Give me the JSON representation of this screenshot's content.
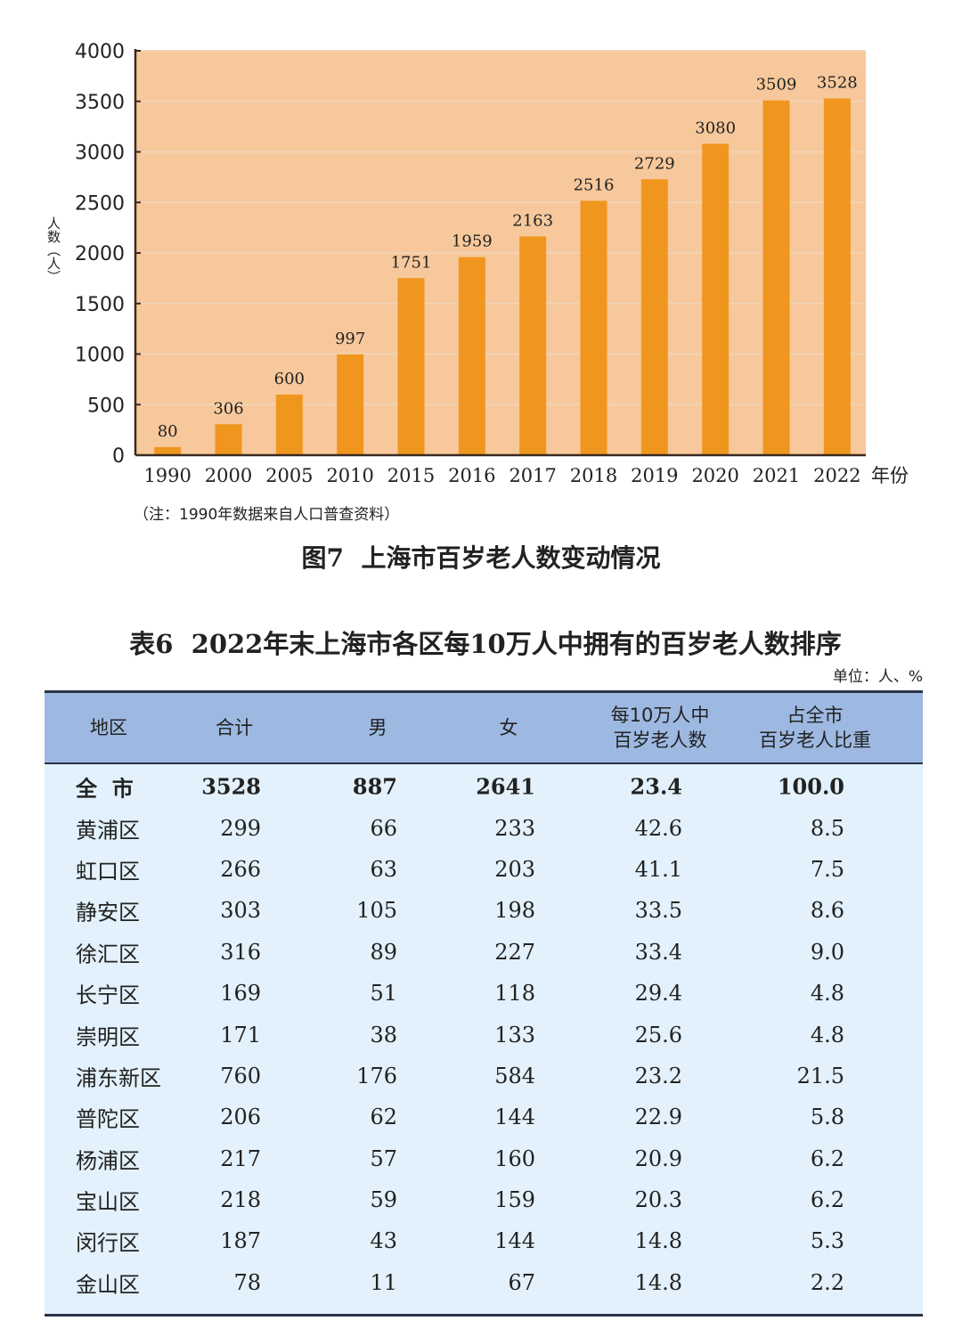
{
  "chart_data": {
    "type": "bar",
    "title": "图7  上海市百岁老人数变动情况",
    "ylabel": "人数（人）",
    "xlabel": "年份",
    "note": "（注：1990年数据来自人口普查资料）",
    "categories": [
      "1990",
      "2000",
      "2005",
      "2010",
      "2015",
      "2016",
      "2017",
      "2018",
      "2019",
      "2020",
      "2021",
      "2022"
    ],
    "values": [
      80,
      306,
      600,
      997,
      1751,
      1959,
      2163,
      2516,
      2729,
      3080,
      3509,
      3528
    ],
    "ylim": [
      0,
      4000
    ],
    "yticks": [
      0,
      500,
      1000,
      1500,
      2000,
      2500,
      3000,
      3500,
      4000
    ],
    "grid": true,
    "colors": {
      "bar": "#f0961e",
      "background": "#f7c89b",
      "grid": "#f2d3b4"
    }
  },
  "table": {
    "title": "表6  2022年末上海市各区每10万人中拥有的百岁老人数排序",
    "unit": "单位：人、%",
    "headers": [
      "地区",
      "合计",
      "男",
      "女",
      "每10万人中\n百岁老人数",
      "占全市\n百岁老人比重"
    ],
    "rows": [
      [
        "全  市",
        "3528",
        "887",
        "2641",
        "23.4",
        "100.0"
      ],
      [
        "黄浦区",
        "299",
        "66",
        "233",
        "42.6",
        "8.5"
      ],
      [
        "虹口区",
        "266",
        "63",
        "203",
        "41.1",
        "7.5"
      ],
      [
        "静安区",
        "303",
        "105",
        "198",
        "33.5",
        "8.6"
      ],
      [
        "徐汇区",
        "316",
        "89",
        "227",
        "33.4",
        "9.0"
      ],
      [
        "长宁区",
        "169",
        "51",
        "118",
        "29.4",
        "4.8"
      ],
      [
        "崇明区",
        "171",
        "38",
        "133",
        "25.6",
        "4.8"
      ],
      [
        "浦东新区",
        "760",
        "176",
        "584",
        "23.2",
        "21.5"
      ],
      [
        "普陀区",
        "206",
        "62",
        "144",
        "22.9",
        "5.8"
      ],
      [
        "杨浦区",
        "217",
        "57",
        "160",
        "20.9",
        "6.2"
      ],
      [
        "宝山区",
        "218",
        "59",
        "159",
        "20.3",
        "6.2"
      ],
      [
        "闵行区",
        "187",
        "43",
        "144",
        "14.8",
        "5.3"
      ],
      [
        "金山区",
        "78",
        "11",
        "67",
        "14.8",
        "2.2"
      ]
    ]
  }
}
